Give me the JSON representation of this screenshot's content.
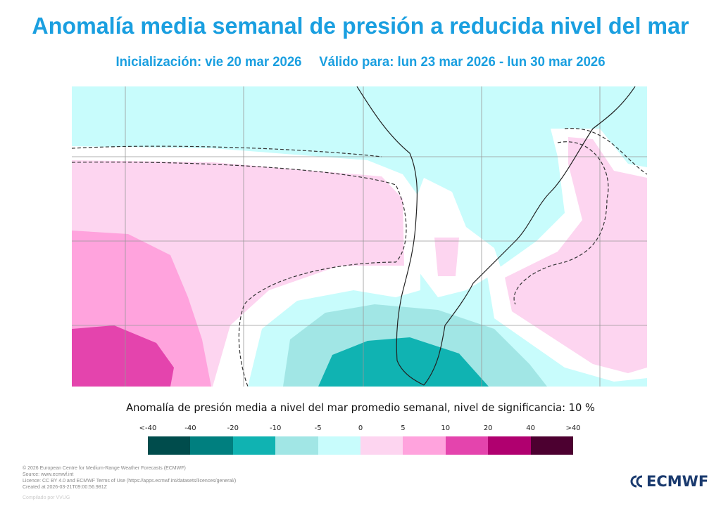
{
  "header": {
    "title": "Anomalía media semanal de presión a reducida nivel del mar",
    "initialization": "Inicialización: vie 20 mar 2026",
    "valid": "Válido para: lun 23 mar 2026 - lun 30 mar 2026"
  },
  "map": {
    "region": "South America",
    "colors": {
      "cyan": "#c8fcfc",
      "light_pink": "#fdd5f0",
      "pink": "#ffa3dd",
      "magenta": "#e444ad",
      "light_teal": "#a1e6e5",
      "teal": "#10b3b2"
    }
  },
  "legend": {
    "caption": "Anomalía de presión media a nivel del mar promedio semanal, nivel de significancia: 10 %",
    "ticks": [
      "<-40",
      "-40",
      "-20",
      "-10",
      "-5",
      "0",
      "5",
      "10",
      "20",
      "40",
      ">40"
    ],
    "colors": [
      "#004c4c",
      "#007f7f",
      "#10b3b2",
      "#a1e6e5",
      "#c8fcfc",
      "#fdd5f0",
      "#ffa3dd",
      "#e444ad",
      "#b0006f",
      "#4c0030"
    ]
  },
  "footer": {
    "copyright": "© 2026 European Centre for Medium-Range Weather Forecasts (ECMWF)",
    "source": "Source: www.ecmwf.int",
    "licence": "Licence: CC BY 4.0 and ECMWF Terms of Use (https://apps.ecmwf.int/datasets/licences/general/)",
    "created": "Created at 2026-03-21T09:00:56.981Z",
    "compiled": "Compilado por VVUG",
    "logo": "ECMWF"
  }
}
